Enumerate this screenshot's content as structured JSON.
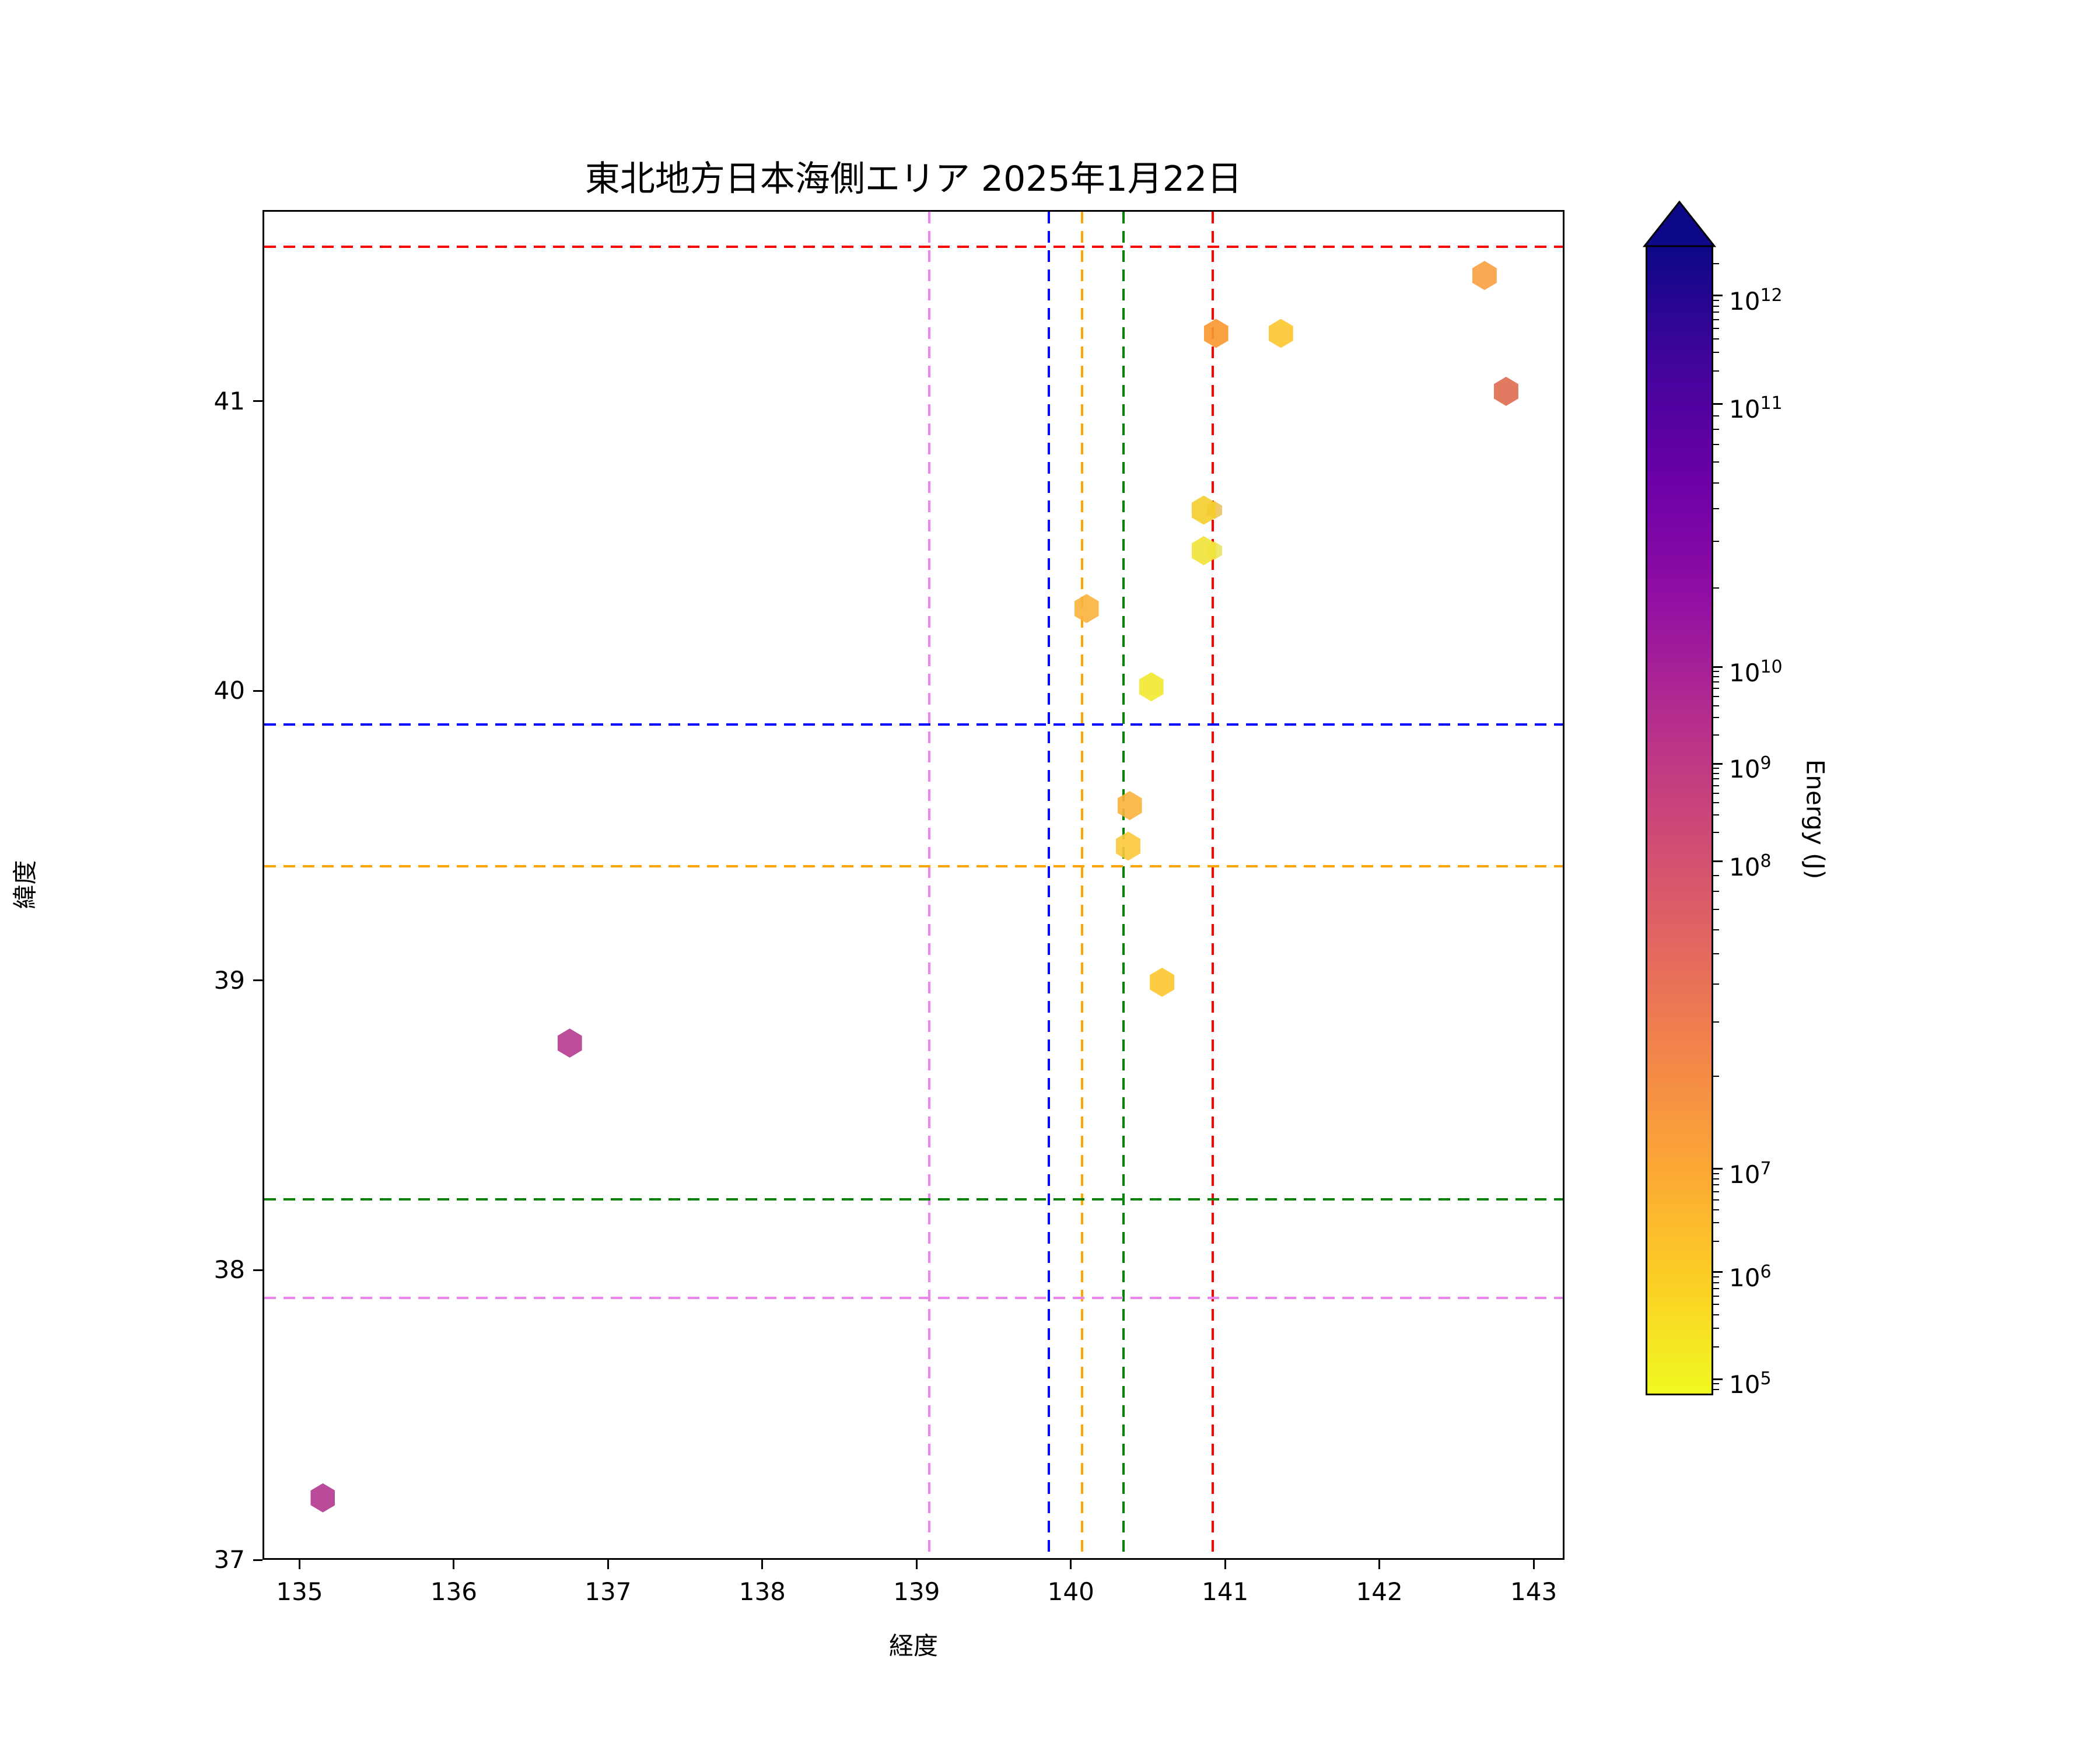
{
  "title": "東北地方日本海側エリア 2025年1月22日",
  "axes": {
    "xlabel": "経度",
    "ylabel": "緯度"
  },
  "chart_data": {
    "type": "scatter",
    "title": "東北地方日本海側エリア 2025年1月22日",
    "xlabel": "経度",
    "ylabel": "緯度",
    "xlim": [
      134.76,
      143.2
    ],
    "ylim": [
      37.0,
      41.66
    ],
    "x_ticks": [
      135,
      136,
      137,
      138,
      139,
      140,
      141,
      142,
      143
    ],
    "y_ticks": [
      37,
      38,
      39,
      40,
      41
    ],
    "grid": false,
    "legend": "none",
    "marker_shape": "hexagon",
    "marker_opacity": 0.9,
    "points": [
      {
        "lon": 140.92,
        "lat": 40.63,
        "color": "#eec45a",
        "energy_j_est": 700000,
        "size": "small"
      },
      {
        "lon": 140.92,
        "lat": 40.49,
        "color": "#ece55e",
        "energy_j_est": 200000,
        "size": "small"
      },
      {
        "lon": 135.14,
        "lat": 37.22,
        "color": "#b3368f",
        "energy_j_est": 1000000000,
        "size": "normal"
      },
      {
        "lon": 136.74,
        "lat": 38.79,
        "color": "#b53a90",
        "energy_j_est": 1000000000,
        "size": "normal"
      },
      {
        "lon": 140.09,
        "lat": 40.29,
        "color": "#fbb23c",
        "energy_j_est": 5000000,
        "size": "normal"
      },
      {
        "lon": 140.51,
        "lat": 40.02,
        "color": "#f3e92d",
        "energy_j_est": 120000,
        "size": "normal"
      },
      {
        "lon": 140.37,
        "lat": 39.61,
        "color": "#fab23c",
        "energy_j_est": 5000000,
        "size": "normal"
      },
      {
        "lon": 140.36,
        "lat": 39.47,
        "color": "#fbc93d",
        "energy_j_est": 800000,
        "size": "normal"
      },
      {
        "lon": 140.58,
        "lat": 39.0,
        "color": "#fcc62f",
        "energy_j_est": 800000,
        "size": "normal"
      },
      {
        "lon": 140.85,
        "lat": 40.63,
        "color": "#f4cd2a",
        "energy_j_est": 500000,
        "size": "normal"
      },
      {
        "lon": 140.85,
        "lat": 40.49,
        "color": "#f2e339",
        "energy_j_est": 150000,
        "size": "normal"
      },
      {
        "lon": 140.93,
        "lat": 41.24,
        "color": "#f9982f",
        "energy_j_est": 12000000,
        "size": "normal"
      },
      {
        "lon": 141.35,
        "lat": 41.24,
        "color": "#fcc72e",
        "energy_j_est": 800000,
        "size": "normal"
      },
      {
        "lon": 142.67,
        "lat": 41.44,
        "color": "#f89e41",
        "energy_j_est": 12000000,
        "size": "normal"
      },
      {
        "lon": 142.81,
        "lat": 41.04,
        "color": "#df6b51",
        "energy_j_est": 50000000,
        "size": "normal"
      }
    ],
    "vlines": [
      {
        "lon": 139.07,
        "color": "#ee82ee",
        "style": "dashed"
      },
      {
        "lon": 139.845,
        "color": "#0000ff",
        "style": "dashed"
      },
      {
        "lon": 140.06,
        "color": "#ffa500",
        "style": "dashed"
      },
      {
        "lon": 140.33,
        "color": "#008000",
        "style": "dashed"
      },
      {
        "lon": 140.91,
        "color": "#ff0000",
        "style": "dashed"
      }
    ],
    "hlines": [
      {
        "lat": 41.54,
        "color": "#ff0000",
        "style": "dashed"
      },
      {
        "lat": 39.89,
        "color": "#0000ff",
        "style": "dashed"
      },
      {
        "lat": 39.4,
        "color": "#ffa500",
        "style": "dashed"
      },
      {
        "lat": 38.25,
        "color": "#008000",
        "style": "dashed"
      },
      {
        "lat": 37.91,
        "color": "#ee82ee",
        "style": "dashed"
      }
    ],
    "colorbar": {
      "label": "Energy (J)",
      "orientation": "vertical",
      "extend": "max",
      "scale": "log",
      "colormap": "plasma_r",
      "arrow_color": "#0d0887",
      "ticks": [
        {
          "base": "10",
          "exp": "12",
          "frac": 0.044
        },
        {
          "base": "10",
          "exp": "11",
          "frac": 0.138
        },
        {
          "base": "10",
          "exp": "10",
          "frac": 0.367
        },
        {
          "base": "10",
          "exp": "9",
          "frac": 0.451
        },
        {
          "base": "10",
          "exp": "8",
          "frac": 0.536
        },
        {
          "base": "10",
          "exp": "7",
          "frac": 0.803
        },
        {
          "base": "10",
          "exp": "6",
          "frac": 0.893
        },
        {
          "base": "10",
          "exp": "5",
          "frac": 0.986
        }
      ],
      "extra_minor_fracs": [
        0.016,
        0.99,
        0.995
      ],
      "gradient_stops": [
        "#0d0887",
        "#41049d",
        "#6a00a8",
        "#8f0da4",
        "#b12a90",
        "#cc4778",
        "#e16462",
        "#f2844b",
        "#fca636",
        "#fcce25",
        "#f0f921"
      ]
    }
  }
}
